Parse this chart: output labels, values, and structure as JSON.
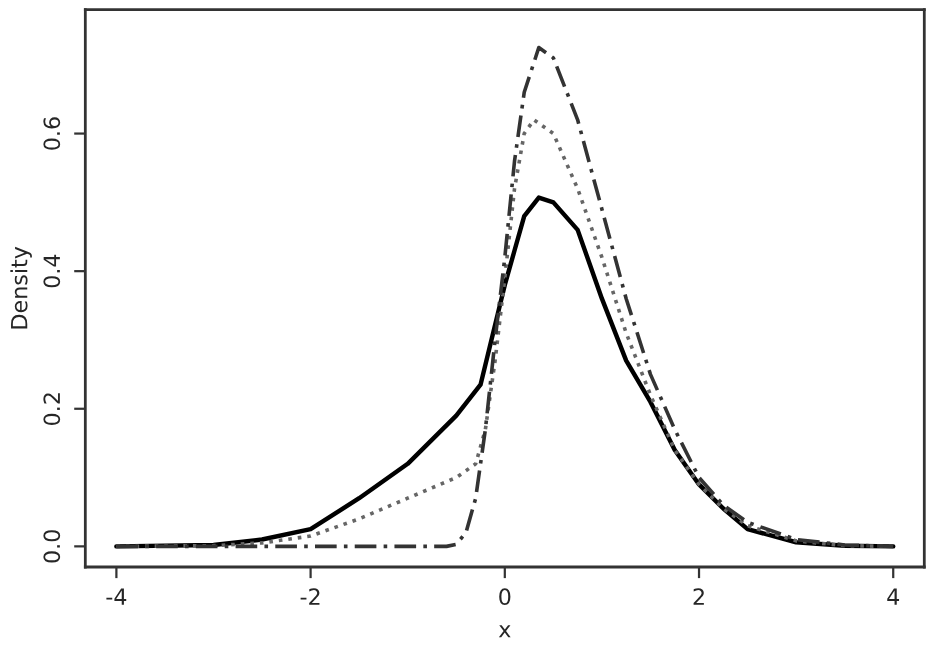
{
  "chart_data": {
    "type": "line",
    "xlabel": "x",
    "ylabel": "Density",
    "xlim": [
      -4.32,
      4.32
    ],
    "ylim": [
      -0.03,
      0.78
    ],
    "xticks": [
      -4,
      -2,
      0,
      2,
      4
    ],
    "yticks": [
      {
        "value": 0,
        "label": "0.0"
      },
      {
        "value": 0.2,
        "label": "0.2"
      },
      {
        "value": 0.4,
        "label": "0.4"
      },
      {
        "value": 0.6,
        "label": "0.6"
      }
    ],
    "grid": false,
    "series": [
      {
        "color": "#000000",
        "line_style": "solid",
        "x": [
          -4,
          -3,
          -2.5,
          -2,
          -1.5,
          -1,
          -0.5,
          -0.25,
          0,
          0.1,
          0.2,
          0.35,
          0.5,
          0.75,
          1,
          1.25,
          1.5,
          1.75,
          2,
          2.25,
          2.5,
          3,
          3.5,
          4
        ],
        "values": [
          0,
          0.002,
          0.01,
          0.025,
          0.07,
          0.12,
          0.19,
          0.235,
          0.38,
          0.43,
          0.48,
          0.507,
          0.5,
          0.46,
          0.36,
          0.27,
          0.21,
          0.14,
          0.09,
          0.055,
          0.025,
          0.006,
          0.001,
          0
        ]
      },
      {
        "color": "#666666",
        "line_style": "dotted",
        "x": [
          -4,
          -3,
          -2.5,
          -2,
          -1.5,
          -1,
          -0.5,
          -0.3,
          -0.2,
          -0.1,
          0,
          0.1,
          0.2,
          0.3,
          0.5,
          0.75,
          1,
          1.25,
          1.5,
          1.75,
          2,
          2.25,
          2.5,
          3,
          3.5,
          4
        ],
        "values": [
          0,
          0.001,
          0.005,
          0.015,
          0.04,
          0.07,
          0.1,
          0.12,
          0.17,
          0.27,
          0.39,
          0.52,
          0.6,
          0.62,
          0.6,
          0.52,
          0.42,
          0.31,
          0.22,
          0.14,
          0.09,
          0.055,
          0.03,
          0.008,
          0.001,
          0
        ]
      },
      {
        "color": "#333333",
        "line_style": "dashed",
        "x": [
          -4,
          -0.6,
          -0.5,
          -0.4,
          -0.3,
          -0.2,
          -0.1,
          0,
          0.1,
          0.2,
          0.35,
          0.5,
          0.75,
          1,
          1.25,
          1.5,
          1.75,
          2,
          2.25,
          2.5,
          3,
          3.5,
          4
        ],
        "values": [
          0,
          0,
          0.003,
          0.02,
          0.07,
          0.17,
          0.3,
          0.42,
          0.56,
          0.66,
          0.725,
          0.71,
          0.62,
          0.49,
          0.36,
          0.25,
          0.17,
          0.1,
          0.06,
          0.035,
          0.01,
          0.002,
          0
        ]
      }
    ]
  }
}
